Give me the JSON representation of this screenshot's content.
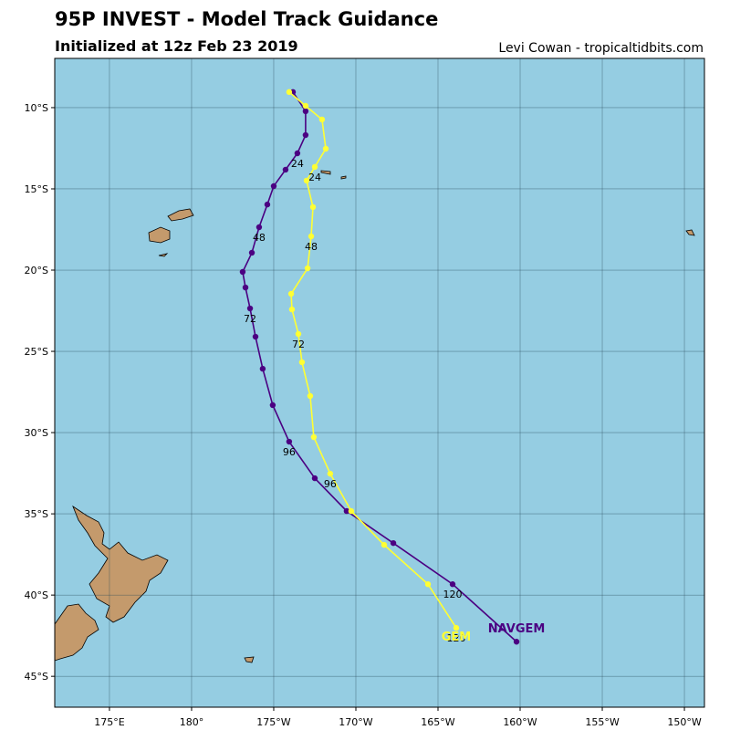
{
  "chart_data": {
    "type": "track",
    "title": "95P INVEST - Model Track Guidance",
    "subtitle": "Initialized at 12z Feb 23 2019",
    "credit": "Levi Cowan - tropicaltidbits.com",
    "xlim": [
      171.67,
      211.22
    ],
    "ylim": [
      -46.9,
      -6.97
    ],
    "xticks": [
      {
        "value": 175,
        "label": "175°E"
      },
      {
        "value": 180,
        "label": "180°"
      },
      {
        "value": 185,
        "label": "175°W"
      },
      {
        "value": 190,
        "label": "170°W"
      },
      {
        "value": 195,
        "label": "165°W"
      },
      {
        "value": 200,
        "label": "160°W"
      },
      {
        "value": 205,
        "label": "155°W"
      },
      {
        "value": 210,
        "label": "150°W"
      }
    ],
    "yticks": [
      {
        "value": -10,
        "label": "10°S"
      },
      {
        "value": -15,
        "label": "15°S"
      },
      {
        "value": -20,
        "label": "20°S"
      },
      {
        "value": -25,
        "label": "25°S"
      },
      {
        "value": -30,
        "label": "30°S"
      },
      {
        "value": -35,
        "label": "35°S"
      },
      {
        "value": -40,
        "label": "40°S"
      },
      {
        "value": -45,
        "label": "45°S"
      }
    ],
    "grid": true,
    "series": [
      {
        "name": "NAVGEM",
        "color": "#4b0082",
        "x": [
          186.17,
          186.94,
          186.94,
          186.44,
          185.72,
          185.0,
          184.61,
          184.11,
          183.67,
          183.11,
          183.28,
          183.56,
          183.89,
          184.33,
          184.94,
          185.94,
          187.5,
          189.44,
          192.28,
          195.89,
          199.78
        ],
        "values": [
          -9.04,
          -10.22,
          -11.69,
          -12.81,
          -13.82,
          -14.83,
          -15.96,
          -17.36,
          -18.93,
          -20.11,
          -21.07,
          -22.36,
          -24.1,
          -26.07,
          -28.31,
          -30.56,
          -32.81,
          -34.83,
          -36.8,
          -39.33,
          -42.87
        ],
        "value_labels": [
          null,
          null,
          null,
          "24",
          null,
          null,
          null,
          "48",
          null,
          null,
          null,
          "72",
          null,
          null,
          null,
          "96",
          null,
          null,
          null,
          "120",
          null
        ]
      },
      {
        "name": "GEM",
        "color": "#ffff33",
        "x": [
          185.94,
          186.94,
          187.94,
          188.17,
          187.5,
          187.0,
          187.39,
          187.28,
          187.06,
          186.06,
          186.11,
          186.5,
          186.72,
          187.22,
          187.44,
          188.44,
          189.72,
          191.72,
          194.39,
          196.11
        ],
        "values": [
          -9.04,
          -9.89,
          -10.73,
          -12.53,
          -13.65,
          -14.49,
          -16.12,
          -17.92,
          -19.89,
          -21.46,
          -22.42,
          -23.93,
          -25.67,
          -27.75,
          -30.28,
          -32.53,
          -34.83,
          -36.91,
          -39.33,
          -42.02
        ],
        "value_labels": [
          null,
          null,
          null,
          null,
          "24",
          null,
          null,
          "48",
          null,
          null,
          null,
          "72",
          null,
          null,
          null,
          "96",
          null,
          null,
          null,
          "120"
        ]
      }
    ]
  }
}
